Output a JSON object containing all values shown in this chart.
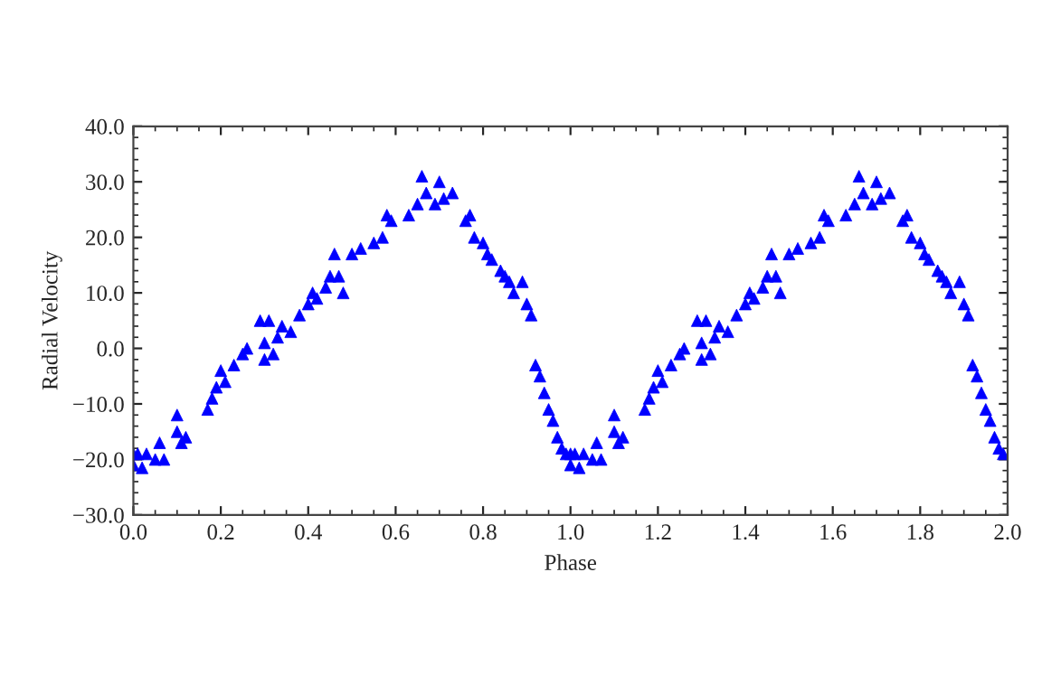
{
  "chart_data": {
    "type": "scatter",
    "xlabel": "Phase",
    "ylabel": "Radial Velocity",
    "marker": "triangle",
    "grid": false,
    "xlim": [
      0,
      2
    ],
    "ylim": [
      -30,
      40
    ],
    "xticks": [
      {
        "value": 0,
        "label": "0.0"
      },
      {
        "value": 0.2,
        "label": "0.2"
      },
      {
        "value": 0.4,
        "label": "0.4"
      },
      {
        "value": 0.6,
        "label": "0.6"
      },
      {
        "value": 0.8,
        "label": "0.8"
      },
      {
        "value": 1,
        "label": "1.0"
      },
      {
        "value": 1.2,
        "label": "1.2"
      },
      {
        "value": 1.4,
        "label": "1.4"
      },
      {
        "value": 1.6,
        "label": "1.6"
      },
      {
        "value": 1.8,
        "label": "1.8"
      },
      {
        "value": 2,
        "label": "2.0"
      }
    ],
    "yticks": [
      {
        "value": -30,
        "label": "−30.0"
      },
      {
        "value": -20,
        "label": "−20.0"
      },
      {
        "value": -10,
        "label": "−10.0"
      },
      {
        "value": 0,
        "label": "0.0"
      },
      {
        "value": 10,
        "label": "10.0"
      },
      {
        "value": 20,
        "label": "20.0"
      },
      {
        "value": 30,
        "label": "30.0"
      },
      {
        "value": 40,
        "label": "40.0"
      }
    ],
    "series": [
      {
        "color": "#0000ff",
        "x": [
          0.0,
          0.0,
          0.01,
          0.02,
          0.03,
          0.05,
          0.06,
          0.07,
          0.1,
          0.1,
          0.11,
          0.12,
          0.17,
          0.18,
          0.19,
          0.2,
          0.21,
          0.23,
          0.25,
          0.26,
          0.29,
          0.3,
          0.3,
          0.31,
          0.32,
          0.33,
          0.34,
          0.36,
          0.38,
          0.4,
          0.41,
          0.42,
          0.44,
          0.45,
          0.46,
          0.47,
          0.48,
          0.5,
          0.52,
          0.55,
          0.57,
          0.58,
          0.59,
          0.63,
          0.65,
          0.66,
          0.67,
          0.69,
          0.7,
          0.71,
          0.73,
          0.76,
          0.77,
          0.78,
          0.8,
          0.81,
          0.82,
          0.84,
          0.85,
          0.86,
          0.87,
          0.89,
          0.9,
          0.91,
          0.92,
          0.93,
          0.94,
          0.95,
          0.96,
          0.97,
          0.98,
          0.99,
          1.0,
          1.0,
          1.01,
          1.02,
          1.03,
          1.05,
          1.06,
          1.07,
          1.1,
          1.1,
          1.11,
          1.12,
          1.17,
          1.18,
          1.19,
          1.2,
          1.21,
          1.23,
          1.25,
          1.26,
          1.29,
          1.3,
          1.3,
          1.31,
          1.32,
          1.33,
          1.34,
          1.36,
          1.38,
          1.4,
          1.41,
          1.42,
          1.44,
          1.45,
          1.46,
          1.47,
          1.48,
          1.5,
          1.52,
          1.55,
          1.57,
          1.58,
          1.59,
          1.63,
          1.65,
          1.66,
          1.67,
          1.69,
          1.7,
          1.71,
          1.73,
          1.76,
          1.77,
          1.78,
          1.8,
          1.81,
          1.82,
          1.84,
          1.85,
          1.86,
          1.87,
          1.89,
          1.9,
          1.91,
          1.92,
          1.93,
          1.94,
          1.95,
          1.96,
          1.97,
          1.98,
          1.99
        ],
        "values": [
          -19,
          -21,
          -19,
          -21.5,
          -19,
          -20,
          -17,
          -20,
          -15,
          -12,
          -17,
          -16,
          -11,
          -9,
          -7,
          -4,
          -6,
          -3,
          -1,
          0,
          5,
          -2,
          1,
          5,
          -1,
          2,
          4,
          3,
          6,
          8,
          10,
          9,
          11,
          13,
          17,
          13,
          10,
          17,
          18,
          19,
          20,
          24,
          23,
          24,
          26,
          31,
          28,
          26,
          30,
          27,
          28,
          23,
          24,
          20,
          19,
          17,
          16,
          14,
          13,
          12,
          10,
          12,
          8,
          6,
          -3,
          -5,
          -8,
          -11,
          -13,
          -16,
          -18,
          -19,
          -19,
          -21,
          -19,
          -21.5,
          -19,
          -20,
          -17,
          -20,
          -15,
          -12,
          -17,
          -16,
          -11,
          -9,
          -7,
          -4,
          -6,
          -3,
          -1,
          0,
          5,
          -2,
          1,
          5,
          -1,
          2,
          4,
          3,
          6,
          8,
          10,
          9,
          11,
          13,
          17,
          13,
          10,
          17,
          18,
          19,
          20,
          24,
          23,
          24,
          26,
          31,
          28,
          26,
          30,
          27,
          28,
          23,
          24,
          20,
          19,
          17,
          16,
          14,
          13,
          12,
          10,
          12,
          8,
          6,
          -3,
          -5,
          -8,
          -11,
          -13,
          -16,
          -18,
          -19
        ]
      }
    ]
  }
}
